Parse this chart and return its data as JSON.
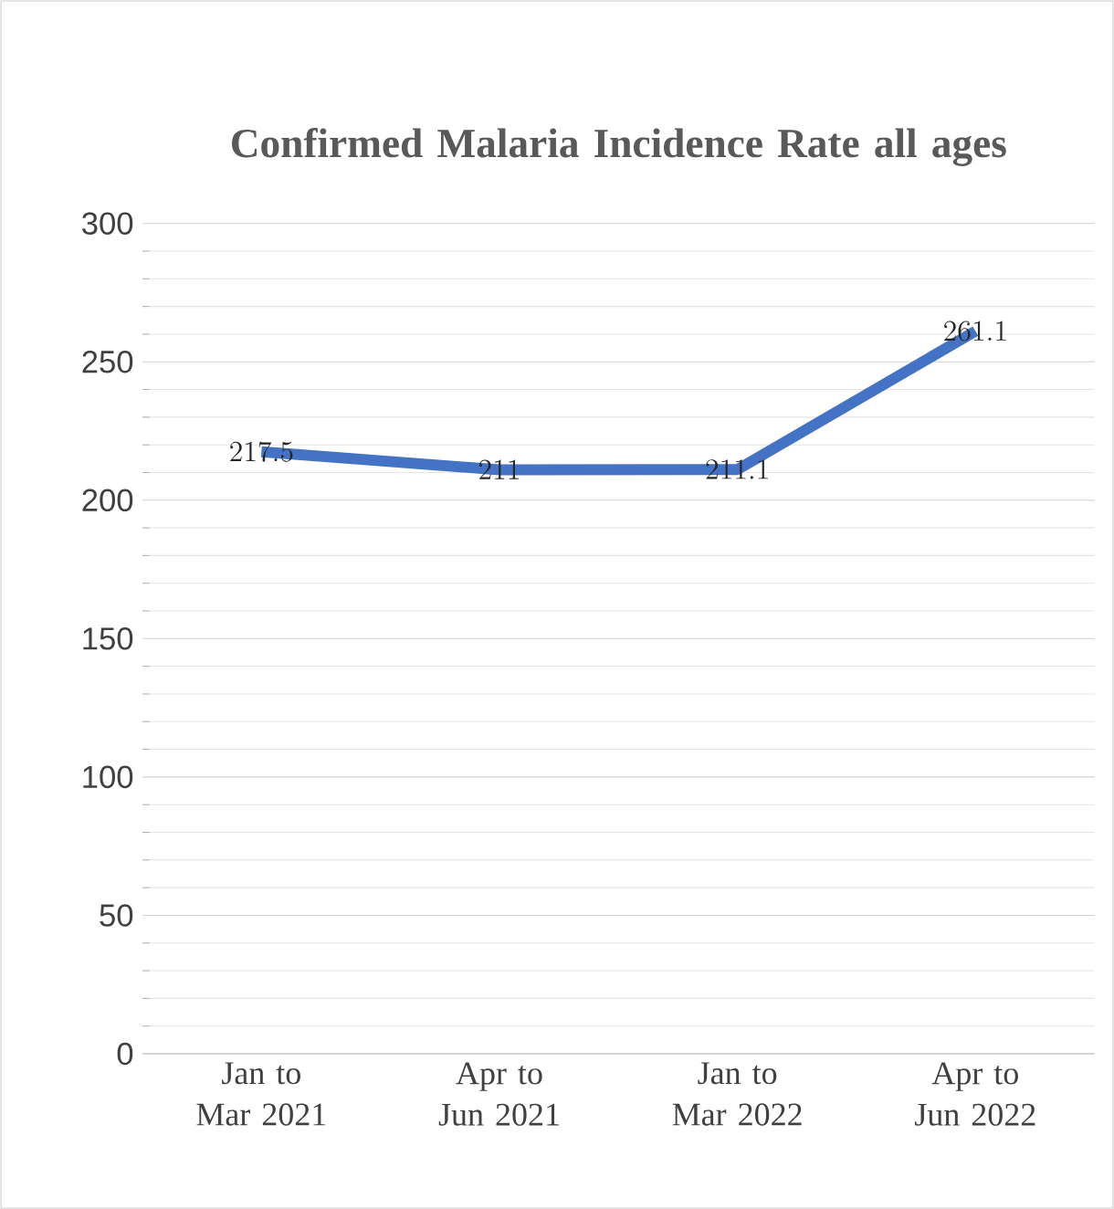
{
  "chart_data": {
    "type": "line",
    "title": "Confirmed Malaria Incidence Rate all ages",
    "categories": [
      "Jan to Mar 2021",
      "Apr to Jun 2021",
      "Jan to Mar 2022",
      "Apr to Jun 2022"
    ],
    "values": [
      217.5,
      211,
      211.1,
      261.1
    ],
    "color": "#4472c4",
    "ylim": [
      0,
      300
    ],
    "yticks": [
      0,
      50,
      100,
      150,
      200,
      250,
      300
    ],
    "grid": "y",
    "data_labels": true,
    "marker": "none",
    "line_style": "solid"
  }
}
